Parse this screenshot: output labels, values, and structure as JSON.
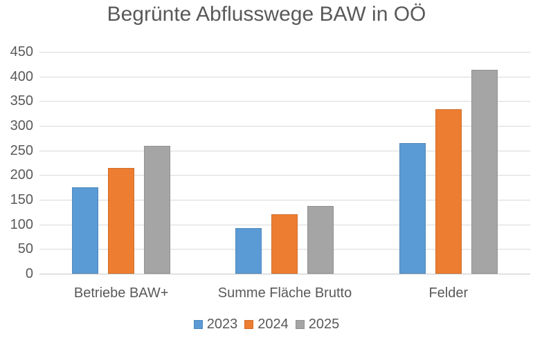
{
  "chart_data": {
    "type": "bar",
    "title": "Begrünte Abflusswege BAW in OÖ",
    "categories": [
      "Betriebe BAW+",
      "Summe Fläche Brutto",
      "Felder"
    ],
    "series": [
      {
        "name": "2023",
        "color": "#5B9BD5",
        "values": [
          175,
          93,
          265
        ]
      },
      {
        "name": "2024",
        "color": "#ED7D31",
        "values": [
          215,
          120,
          334
        ]
      },
      {
        "name": "2025",
        "color": "#A5A5A5",
        "values": [
          260,
          138,
          413
        ]
      }
    ],
    "ylim": [
      0,
      450
    ],
    "yticks": [
      0,
      50,
      100,
      150,
      200,
      250,
      300,
      350,
      400,
      450
    ],
    "xlabel": "",
    "ylabel": "",
    "grid": true,
    "legend_position": "bottom",
    "colors": {
      "text": "#595959",
      "gridline": "#d9d9d9",
      "axis_line": "#c6c6c6",
      "background": "#ffffff"
    }
  }
}
